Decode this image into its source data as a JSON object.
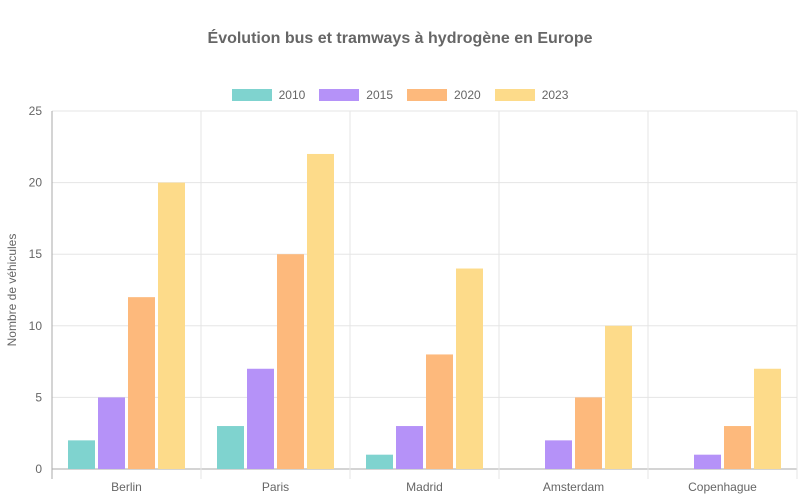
{
  "chart_data": {
    "type": "bar",
    "title": "Évolution bus et tramways à hydrogène en Europe",
    "xlabel": "",
    "ylabel": "Nombre de véhicules",
    "ylim": [
      0,
      25
    ],
    "yticks": [
      0,
      5,
      10,
      15,
      20,
      25
    ],
    "grid": true,
    "legend_position": "top",
    "categories": [
      "Berlin",
      "Paris",
      "Madrid",
      "Amsterdam",
      "Copenhague"
    ],
    "series": [
      {
        "name": "2010",
        "color": "#7fd3cf",
        "values": [
          2,
          3,
          1,
          0,
          0
        ]
      },
      {
        "name": "2015",
        "color": "#b592f8",
        "values": [
          5,
          7,
          3,
          2,
          1
        ]
      },
      {
        "name": "2020",
        "color": "#fdb97c",
        "values": [
          12,
          15,
          8,
          5,
          3
        ]
      },
      {
        "name": "2023",
        "color": "#fddb8a",
        "values": [
          20,
          22,
          14,
          10,
          7
        ]
      }
    ]
  }
}
